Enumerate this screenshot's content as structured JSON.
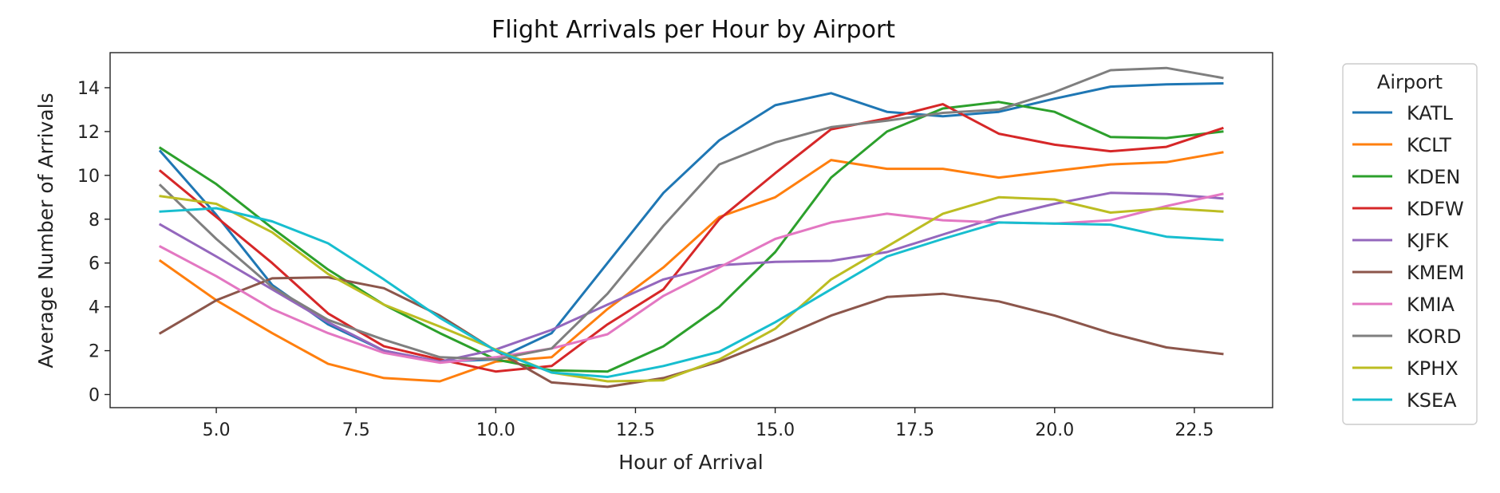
{
  "chart_data": {
    "type": "line",
    "title": "Flight Arrivals per Hour by Airport",
    "xlabel": "Hour of Arrival",
    "ylabel": "Average Number of Arrivals",
    "xlim": [
      3.1,
      23.9
    ],
    "ylim": [
      -0.6,
      15.6
    ],
    "xticks": [
      5.0,
      7.5,
      10.0,
      12.5,
      15.0,
      17.5,
      20.0,
      22.5
    ],
    "xtick_labels": [
      "5.0",
      "7.5",
      "10.0",
      "12.5",
      "15.0",
      "17.5",
      "20.0",
      "22.5"
    ],
    "yticks": [
      0,
      2,
      4,
      6,
      8,
      10,
      12,
      14
    ],
    "ytick_labels": [
      "0",
      "2",
      "4",
      "6",
      "8",
      "10",
      "12",
      "14"
    ],
    "grid": false,
    "legend_title": "Airport",
    "legend_position": "outside-right-top",
    "x": [
      4,
      5,
      6,
      7,
      8,
      9,
      10,
      11,
      12,
      13,
      14,
      15,
      16,
      17,
      18,
      19,
      20,
      21,
      22,
      23
    ],
    "series": [
      {
        "name": "KATL",
        "color": "#1f77b4",
        "values": [
          11.1,
          8.2,
          5.0,
          3.2,
          2.0,
          1.5,
          1.6,
          2.8,
          6.0,
          9.2,
          11.6,
          13.2,
          13.75,
          12.9,
          12.7,
          12.9,
          13.5,
          14.05,
          14.15,
          14.2
        ]
      },
      {
        "name": "KCLT",
        "color": "#ff7f0e",
        "values": [
          6.1,
          4.3,
          2.8,
          1.4,
          0.75,
          0.6,
          1.5,
          1.7,
          3.9,
          5.8,
          8.1,
          9.0,
          10.7,
          10.3,
          10.3,
          9.9,
          10.2,
          10.5,
          10.6,
          11.05
        ]
      },
      {
        "name": "KDEN",
        "color": "#2ca02c",
        "values": [
          11.25,
          9.6,
          7.6,
          5.7,
          4.1,
          2.8,
          1.6,
          1.1,
          1.05,
          2.2,
          4.0,
          6.5,
          9.9,
          12.0,
          13.05,
          13.35,
          12.9,
          11.75,
          11.7,
          12.0
        ]
      },
      {
        "name": "KDFW",
        "color": "#d62728",
        "values": [
          10.2,
          8.1,
          6.0,
          3.7,
          2.2,
          1.6,
          1.05,
          1.3,
          3.2,
          4.8,
          8.0,
          10.1,
          12.1,
          12.6,
          13.25,
          11.9,
          11.4,
          11.1,
          11.3,
          12.15
        ]
      },
      {
        "name": "KJFK",
        "color": "#9467bd",
        "values": [
          7.75,
          6.3,
          4.8,
          3.3,
          2.0,
          1.5,
          2.05,
          2.95,
          4.1,
          5.25,
          5.9,
          6.05,
          6.1,
          6.5,
          7.3,
          8.1,
          8.7,
          9.2,
          9.15,
          8.95
        ]
      },
      {
        "name": "KMEM",
        "color": "#8c564b",
        "values": [
          2.8,
          4.3,
          5.3,
          5.35,
          4.85,
          3.6,
          2.0,
          0.55,
          0.35,
          0.75,
          1.5,
          2.5,
          3.6,
          4.45,
          4.6,
          4.25,
          3.6,
          2.8,
          2.15,
          1.85
        ]
      },
      {
        "name": "KMIA",
        "color": "#e377c2",
        "values": [
          6.75,
          5.4,
          3.9,
          2.8,
          1.9,
          1.45,
          1.7,
          2.1,
          2.75,
          4.5,
          5.8,
          7.1,
          7.85,
          8.25,
          7.95,
          7.85,
          7.8,
          7.95,
          8.6,
          9.15
        ]
      },
      {
        "name": "KORD",
        "color": "#7f7f7f",
        "values": [
          9.55,
          7.1,
          4.9,
          3.4,
          2.5,
          1.7,
          1.6,
          2.1,
          4.6,
          7.7,
          10.5,
          11.5,
          12.2,
          12.5,
          12.85,
          13.0,
          13.8,
          14.8,
          14.9,
          14.45
        ]
      },
      {
        "name": "KPHX",
        "color": "#bcbd22",
        "values": [
          9.05,
          8.7,
          7.4,
          5.5,
          4.1,
          3.1,
          2.05,
          1.0,
          0.6,
          0.65,
          1.6,
          3.0,
          5.25,
          6.75,
          8.25,
          9.0,
          8.9,
          8.3,
          8.5,
          8.35
        ]
      },
      {
        "name": "KSEA",
        "color": "#17becf",
        "values": [
          8.35,
          8.5,
          7.9,
          6.9,
          5.25,
          3.5,
          2.0,
          1.0,
          0.8,
          1.3,
          1.95,
          3.3,
          4.8,
          6.3,
          7.1,
          7.85,
          7.8,
          7.75,
          7.2,
          7.05
        ]
      }
    ]
  }
}
